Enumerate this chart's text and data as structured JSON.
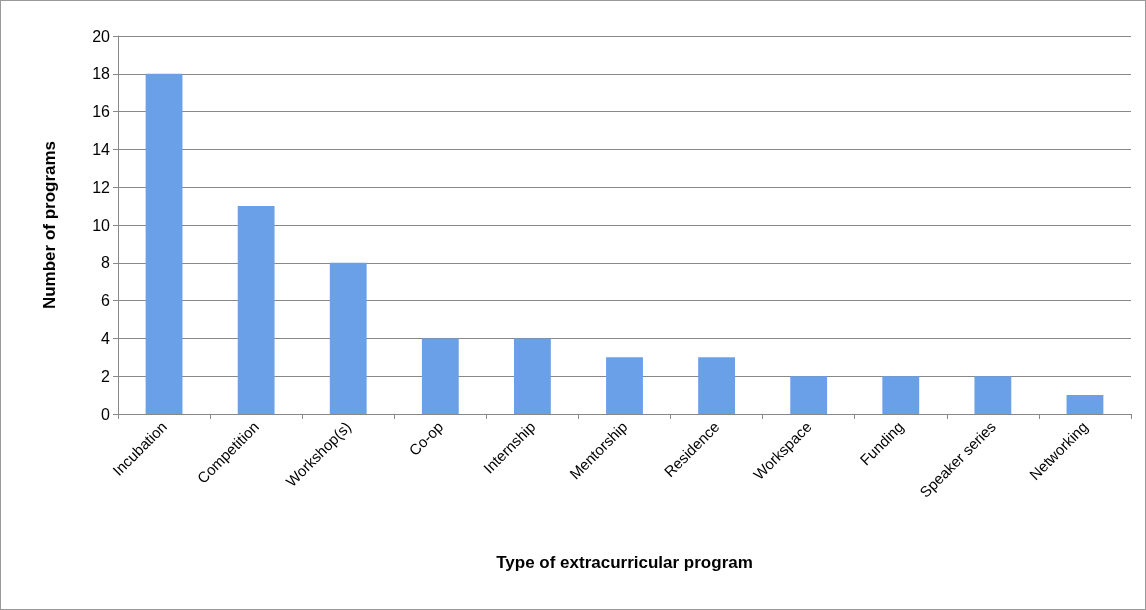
{
  "chart_data": {
    "type": "bar",
    "xlabel": "Type of extracurricular program",
    "ylabel": "Number of programs",
    "categories": [
      "Incubation",
      "Competition",
      "Workshop(s)",
      "Co-op",
      "Internship",
      "Mentorship",
      "Residence",
      "Workspace",
      "Funding",
      "Speaker series",
      "Networking"
    ],
    "values": [
      18,
      11,
      8,
      4,
      4,
      3,
      3,
      2,
      2,
      2,
      1
    ],
    "color": "#6aa0e8",
    "ylim": [
      0,
      20
    ],
    "yticks": [
      0,
      2,
      4,
      6,
      8,
      10,
      12,
      14,
      16,
      18,
      20
    ],
    "grid": "y"
  }
}
